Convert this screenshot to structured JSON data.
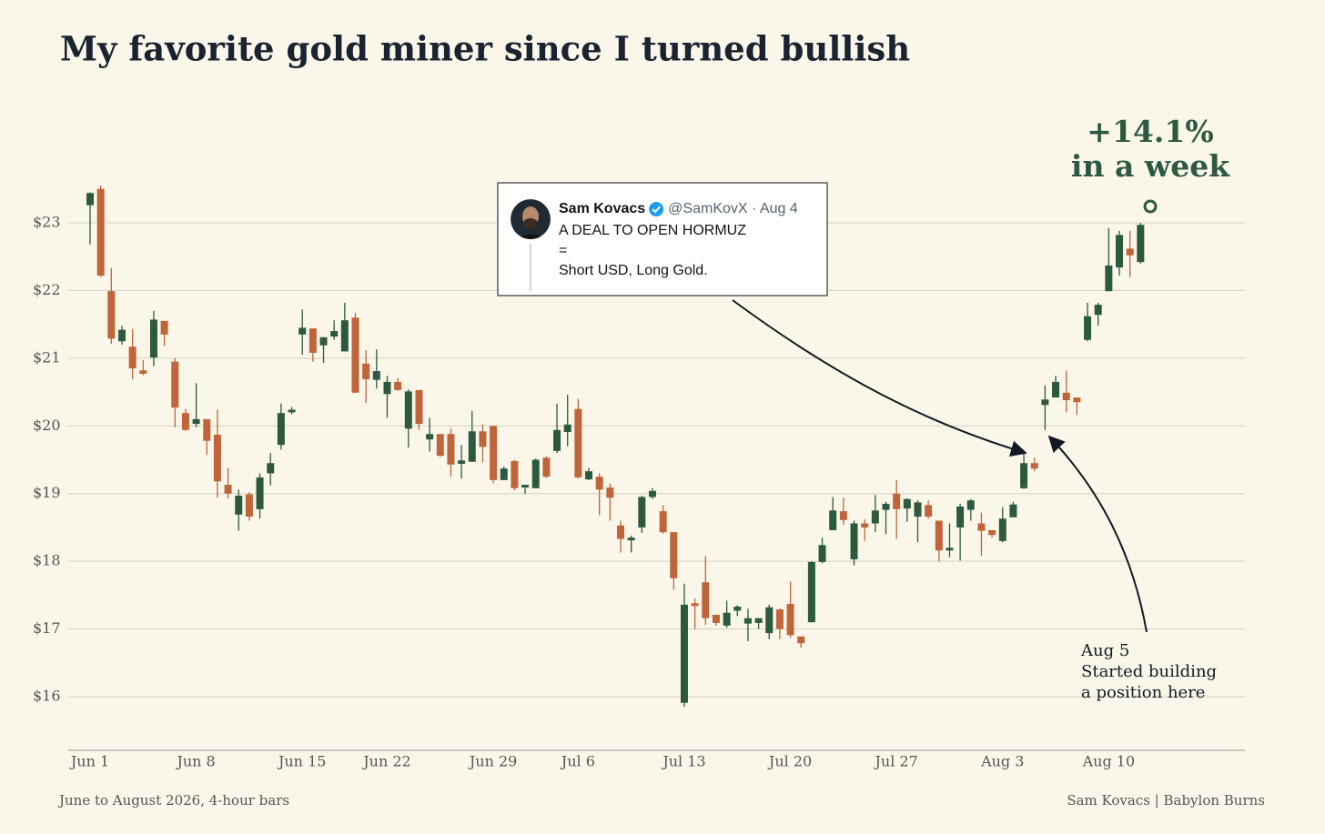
{
  "chart_data": {
    "type": "candlestick",
    "title": "My favorite gold miner since I turned bullish",
    "caption": "June to August 2026, 4-hour bars",
    "source": "Sam Kovacs | Babylon Burns",
    "callout": [
      "+14.1%",
      "in a week"
    ],
    "annotation": [
      "Aug 5",
      "Started building",
      "a position here"
    ],
    "tweet": {
      "name": "Sam Kovacs",
      "handle": "@SamKovX · Aug 4",
      "lines": [
        "A DEAL TO OPEN HORMUZ",
        "=",
        "Short USD, Long Gold."
      ]
    },
    "up_color": "#2d5a3f",
    "down_color": "#c0643a",
    "grid": true,
    "ylim": [
      15.2,
      23.65
    ],
    "yticks": [
      {
        "value": 16,
        "label": "$16"
      },
      {
        "value": 17,
        "label": "$17"
      },
      {
        "value": 18,
        "label": "$18"
      },
      {
        "value": 19,
        "label": "$19"
      },
      {
        "value": 20,
        "label": "$20"
      },
      {
        "value": 21,
        "label": "$21"
      },
      {
        "value": 22,
        "label": "$22"
      },
      {
        "value": 23,
        "label": "$23"
      }
    ],
    "categories": [
      "Jun 1",
      null,
      null,
      null,
      null,
      null,
      null,
      null,
      null,
      null,
      "Jun 8",
      null,
      null,
      null,
      null,
      null,
      null,
      null,
      null,
      null,
      "Jun 15",
      null,
      null,
      null,
      null,
      null,
      null,
      null,
      "Jun 22",
      null,
      null,
      null,
      null,
      null,
      null,
      null,
      null,
      null,
      "Jun 29",
      null,
      null,
      null,
      null,
      null,
      null,
      null,
      "Jul 6",
      null,
      null,
      null,
      null,
      null,
      null,
      null,
      null,
      null,
      "Jul 13",
      null,
      null,
      null,
      null,
      null,
      null,
      null,
      null,
      null,
      "Jul 20",
      null,
      null,
      null,
      null,
      null,
      null,
      null,
      null,
      null,
      "Jul 27",
      null,
      null,
      null,
      null,
      null,
      null,
      null,
      null,
      null,
      "Aug 3",
      null,
      null,
      null,
      null,
      null,
      null,
      null,
      null,
      null,
      "Aug 10",
      null,
      null,
      null
    ],
    "open": [
      23.26,
      23.5,
      21.99,
      21.25,
      21.17,
      20.82,
      21.01,
      21.55,
      20.95,
      20.19,
      20.03,
      20.1,
      19.87,
      19.13,
      18.69,
      18.99,
      18.77,
      19.3,
      19.72,
      20.2,
      21.35,
      21.44,
      21.19,
      21.32,
      21.1,
      21.6,
      20.92,
      20.68,
      20.47,
      20.65,
      19.96,
      20.53,
      19.8,
      19.88,
      19.88,
      19.44,
      19.47,
      19.92,
      20.0,
      19.2,
      19.48,
      19.09,
      19.08,
      19.53,
      19.63,
      19.91,
      20.25,
      19.21,
      19.25,
      19.09,
      18.53,
      18.31,
      18.5,
      18.95,
      18.74,
      18.43,
      15.91,
      17.38,
      17.69,
      17.21,
      17.05,
      17.27,
      17.08,
      17.09,
      16.94,
      17.29,
      17.37,
      16.89,
      17.1,
      17.99,
      18.46,
      18.74,
      18.03,
      18.56,
      18.56,
      18.76,
      19.0,
      18.78,
      18.66,
      18.83,
      18.6,
      18.16,
      18.5,
      18.76,
      18.56,
      18.46,
      18.3,
      18.65,
      19.08,
      19.45,
      20.31,
      20.42,
      20.49,
      20.42,
      21.27,
      21.64,
      21.99,
      22.34,
      22.62,
      22.42
    ],
    "high": [
      23.45,
      23.55,
      22.33,
      21.48,
      21.43,
      20.97,
      21.7,
      21.55,
      21.0,
      20.25,
      20.63,
      20.1,
      20.24,
      19.38,
      19.06,
      19.02,
      19.3,
      19.6,
      20.33,
      20.28,
      21.72,
      21.44,
      21.31,
      21.56,
      21.82,
      21.67,
      21.12,
      21.13,
      20.74,
      20.71,
      20.54,
      20.53,
      20.12,
      19.88,
      19.96,
      19.72,
      20.22,
      20.02,
      20.0,
      19.4,
      19.5,
      19.13,
      19.52,
      19.55,
      20.33,
      20.46,
      20.4,
      19.38,
      19.3,
      19.15,
      18.6,
      18.38,
      18.97,
      19.08,
      18.83,
      18.43,
      17.67,
      17.45,
      18.08,
      17.21,
      17.42,
      17.35,
      17.3,
      17.16,
      17.36,
      17.3,
      17.7,
      16.89,
      18.0,
      18.35,
      18.95,
      18.94,
      18.6,
      18.62,
      18.98,
      18.88,
      19.2,
      18.93,
      18.9,
      18.9,
      18.6,
      18.56,
      18.85,
      18.92,
      18.72,
      18.46,
      18.8,
      18.88,
      19.63,
      19.53,
      20.6,
      20.74,
      20.82,
      20.42,
      21.82,
      21.82,
      22.92,
      22.88,
      22.88,
      23.0
    ],
    "low": [
      22.68,
      22.2,
      21.21,
      21.2,
      20.69,
      20.75,
      20.88,
      21.18,
      19.98,
      19.93,
      19.98,
      19.57,
      18.94,
      18.93,
      18.45,
      18.6,
      18.63,
      19.12,
      19.65,
      20.17,
      21.05,
      20.95,
      20.93,
      21.27,
      21.1,
      20.49,
      20.34,
      20.55,
      20.12,
      20.52,
      19.68,
      19.94,
      19.62,
      19.54,
      19.25,
      19.22,
      19.47,
      19.46,
      19.15,
      19.2,
      19.05,
      19.0,
      19.08,
      19.23,
      19.6,
      19.7,
      19.22,
      19.2,
      18.68,
      18.6,
      18.13,
      18.13,
      18.42,
      18.92,
      18.41,
      17.58,
      15.85,
      17.0,
      17.06,
      17.05,
      17.02,
      17.19,
      16.82,
      17.0,
      16.85,
      16.85,
      16.87,
      16.72,
      17.1,
      17.97,
      18.46,
      18.54,
      17.94,
      18.3,
      18.43,
      18.4,
      18.33,
      18.58,
      18.28,
      18.63,
      18.0,
      18.06,
      18.01,
      18.6,
      18.08,
      18.35,
      18.28,
      18.65,
      19.07,
      19.33,
      19.94,
      20.42,
      20.2,
      20.16,
      21.25,
      21.48,
      21.99,
      22.22,
      22.2,
      22.4
    ],
    "close": [
      23.44,
      22.22,
      21.29,
      21.42,
      20.85,
      20.77,
      21.57,
      21.35,
      20.27,
      19.94,
      20.1,
      19.78,
      19.18,
      19.0,
      18.97,
      18.66,
      19.24,
      19.45,
      20.19,
      20.24,
      21.45,
      21.08,
      21.31,
      21.4,
      21.56,
      20.49,
      20.69,
      20.81,
      20.65,
      20.53,
      20.51,
      20.03,
      19.88,
      19.56,
      19.43,
      19.49,
      19.92,
      19.69,
      19.2,
      19.37,
      19.08,
      19.13,
      19.5,
      19.25,
      19.94,
      20.02,
      19.24,
      19.33,
      19.06,
      18.94,
      18.33,
      18.35,
      18.95,
      19.04,
      18.43,
      17.75,
      17.36,
      17.34,
      17.16,
      17.09,
      17.24,
      17.33,
      17.16,
      17.16,
      17.32,
      17.0,
      16.91,
      16.79,
      17.99,
      18.24,
      18.75,
      18.61,
      18.56,
      18.5,
      18.75,
      18.85,
      18.77,
      18.92,
      18.87,
      18.66,
      18.16,
      18.2,
      18.81,
      18.9,
      18.45,
      18.39,
      18.63,
      18.84,
      19.45,
      19.37,
      20.39,
      20.65,
      20.38,
      20.35,
      21.62,
      21.79,
      22.37,
      22.82,
      22.52,
      22.97
    ]
  }
}
